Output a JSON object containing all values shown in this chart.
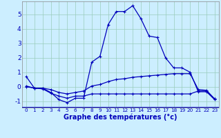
{
  "xlabel": "Graphe des températures (°c)",
  "bg_color": "#cceeff",
  "line_color": "#0000bb",
  "grid_color": "#99ccbb",
  "xlim": [
    -0.5,
    23.5
  ],
  "ylim": [
    -1.45,
    5.9
  ],
  "yticks": [
    -1,
    0,
    1,
    2,
    3,
    4,
    5
  ],
  "xticks": [
    0,
    1,
    2,
    3,
    4,
    5,
    6,
    7,
    8,
    9,
    10,
    11,
    12,
    13,
    14,
    15,
    16,
    17,
    18,
    19,
    20,
    21,
    22,
    23
  ],
  "curve1_x": [
    0,
    1,
    2,
    3,
    4,
    5,
    6,
    7,
    8,
    9,
    10,
    11,
    12,
    13,
    14,
    15,
    16,
    17,
    18,
    19,
    20,
    21,
    22,
    23
  ],
  "curve1_y": [
    0.7,
    -0.1,
    -0.1,
    -0.4,
    -0.9,
    -1.1,
    -0.8,
    -0.8,
    1.7,
    2.1,
    4.3,
    5.2,
    5.2,
    5.6,
    4.7,
    3.5,
    3.4,
    2.0,
    1.3,
    1.3,
    1.0,
    -0.35,
    -0.35,
    -0.9
  ],
  "curve2_x": [
    0,
    1,
    2,
    3,
    4,
    5,
    6,
    7,
    8,
    9,
    10,
    11,
    12,
    13,
    14,
    15,
    16,
    17,
    18,
    19,
    20,
    21,
    22,
    23
  ],
  "curve2_y": [
    0.0,
    -0.1,
    -0.1,
    -0.2,
    -0.4,
    -0.5,
    -0.4,
    -0.3,
    0.05,
    0.15,
    0.35,
    0.5,
    0.55,
    0.65,
    0.7,
    0.75,
    0.8,
    0.85,
    0.9,
    0.9,
    0.9,
    -0.2,
    -0.25,
    -0.85
  ],
  "curve3_x": [
    0,
    1,
    2,
    3,
    4,
    5,
    6,
    7,
    8,
    9,
    10,
    11,
    12,
    13,
    14,
    15,
    16,
    17,
    18,
    19,
    20,
    21,
    22,
    23
  ],
  "curve3_y": [
    0.05,
    -0.1,
    -0.15,
    -0.45,
    -0.65,
    -0.8,
    -0.65,
    -0.65,
    -0.5,
    -0.5,
    -0.5,
    -0.5,
    -0.5,
    -0.5,
    -0.5,
    -0.5,
    -0.5,
    -0.5,
    -0.5,
    -0.5,
    -0.5,
    -0.3,
    -0.3,
    -0.85
  ],
  "ylabel_fontsize": 6.5,
  "xlabel_fontsize": 7.0,
  "tick_fontsize": 5.2,
  "linewidth": 0.9,
  "markersize": 3.0
}
